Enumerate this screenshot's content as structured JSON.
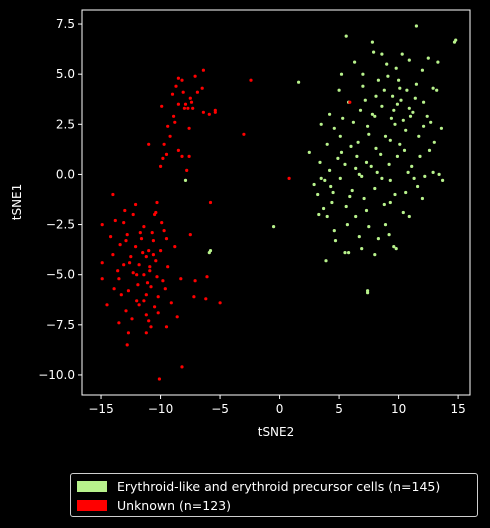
{
  "chart_data": {
    "type": "scatter",
    "xlabel": "tSNE2",
    "ylabel": "tSNE1",
    "xlim": [
      -16.6,
      16.0
    ],
    "ylim": [
      -11.0,
      8.2
    ],
    "xticks": [
      -15,
      -10,
      -5,
      0,
      5,
      10,
      15
    ],
    "yticks": [
      -10.0,
      -7.5,
      -5.0,
      -2.5,
      0.0,
      2.5,
      5.0,
      7.5
    ],
    "xtick_labels": [
      "−15",
      "−10",
      "−5",
      "0",
      "5",
      "10",
      "15"
    ],
    "ytick_labels": [
      "−10.0",
      "−7.5",
      "−5.0",
      "−2.5",
      "0.0",
      "2.5",
      "5.0",
      "7.5"
    ],
    "grid": false,
    "background": "#000000",
    "legend_position": "below",
    "series": [
      {
        "name": "Erythroid-like and erythroid precursor cells (n=145)",
        "color": "#b8f28c",
        "points": [
          [
            5.6,
            6.9
          ],
          [
            7.8,
            6.6
          ],
          [
            8.6,
            6.0
          ],
          [
            11.5,
            7.4
          ],
          [
            14.8,
            6.7
          ],
          [
            14.7,
            6.6
          ],
          [
            1.6,
            4.6
          ],
          [
            5.2,
            5.0
          ],
          [
            7.0,
            5.0
          ],
          [
            9.0,
            5.5
          ],
          [
            9.8,
            5.3
          ],
          [
            12.5,
            5.8
          ],
          [
            13.3,
            5.6
          ],
          [
            8.3,
            4.7
          ],
          [
            10.0,
            4.7
          ],
          [
            11.5,
            4.5
          ],
          [
            12.9,
            4.3
          ],
          [
            13.2,
            4.2
          ],
          [
            8.8,
            4.2
          ],
          [
            10.7,
            4.2
          ],
          [
            9.5,
            3.9
          ],
          [
            10.2,
            3.7
          ],
          [
            11.4,
            3.8
          ],
          [
            12.1,
            3.6
          ],
          [
            7.2,
            3.7
          ],
          [
            8.6,
            3.4
          ],
          [
            9.6,
            3.2
          ],
          [
            10.9,
            3.3
          ],
          [
            6.8,
            3.2
          ],
          [
            8.0,
            2.9
          ],
          [
            11.0,
            2.9
          ],
          [
            12.4,
            2.9
          ],
          [
            3.5,
            2.5
          ],
          [
            4.6,
            2.3
          ],
          [
            6.2,
            2.6
          ],
          [
            7.4,
            2.4
          ],
          [
            9.7,
            2.5
          ],
          [
            10.6,
            2.2
          ],
          [
            12.1,
            2.4
          ],
          [
            5.1,
            1.9
          ],
          [
            7.5,
            2.0
          ],
          [
            8.9,
            1.9
          ],
          [
            9.3,
            1.7
          ],
          [
            10.1,
            1.5
          ],
          [
            13.0,
            1.6
          ],
          [
            4.0,
            1.5
          ],
          [
            6.0,
            1.4
          ],
          [
            8.1,
            1.3
          ],
          [
            10.5,
            1.2
          ],
          [
            2.5,
            1.1
          ],
          [
            5.2,
            1.1
          ],
          [
            6.5,
            0.9
          ],
          [
            8.5,
            1.0
          ],
          [
            9.9,
            0.9
          ],
          [
            11.8,
            0.9
          ],
          [
            3.4,
            0.6
          ],
          [
            5.5,
            0.5
          ],
          [
            7.3,
            0.6
          ],
          [
            9.2,
            0.5
          ],
          [
            11.1,
            0.4
          ],
          [
            4.2,
            0.2
          ],
          [
            6.4,
            0.3
          ],
          [
            8.2,
            0.1
          ],
          [
            12.9,
            0.1
          ],
          [
            13.4,
            0.0
          ],
          [
            3.5,
            -0.2
          ],
          [
            5.1,
            -0.2
          ],
          [
            6.9,
            -0.1
          ],
          [
            9.3,
            -0.3
          ],
          [
            11.3,
            -0.2
          ],
          [
            13.7,
            -0.3
          ],
          [
            4.3,
            -0.6
          ],
          [
            6.1,
            -0.8
          ],
          [
            8.0,
            -0.7
          ],
          [
            10.6,
            -0.9
          ],
          [
            3.2,
            -1.0
          ],
          [
            5.9,
            -1.1
          ],
          [
            7.1,
            -1.2
          ],
          [
            9.3,
            -1.4
          ],
          [
            12.0,
            -1.2
          ],
          [
            4.4,
            -1.4
          ],
          [
            8.8,
            -1.5
          ],
          [
            5.6,
            -1.6
          ],
          [
            3.3,
            -2.0
          ],
          [
            4.0,
            -2.1
          ],
          [
            6.4,
            -2.1
          ],
          [
            8.9,
            -2.5
          ],
          [
            10.9,
            -2.1
          ],
          [
            -0.5,
            -2.6
          ],
          [
            4.6,
            -2.8
          ],
          [
            5.7,
            -2.5
          ],
          [
            7.5,
            -2.6
          ],
          [
            9.2,
            -3.0
          ],
          [
            4.7,
            -3.3
          ],
          [
            6.7,
            -3.1
          ],
          [
            8.3,
            -3.2
          ],
          [
            9.6,
            -3.6
          ],
          [
            9.8,
            -3.7
          ],
          [
            5.5,
            -3.9
          ],
          [
            5.8,
            -3.9
          ],
          [
            3.9,
            -4.3
          ],
          [
            7.4,
            -5.8
          ],
          [
            7.4,
            -5.9
          ],
          [
            -5.8,
            -3.8
          ],
          [
            -5.9,
            -3.9
          ],
          [
            -7.9,
            -0.3
          ],
          [
            5.0,
            4.2
          ],
          [
            6.3,
            5.6
          ],
          [
            7.9,
            6.1
          ],
          [
            10.3,
            6.0
          ],
          [
            12.0,
            5.2
          ],
          [
            10.9,
            5.7
          ],
          [
            9.1,
            4.9
          ],
          [
            8.1,
            3.9
          ],
          [
            7.8,
            3.0
          ],
          [
            9.4,
            2.8
          ],
          [
            10.4,
            2.7
          ],
          [
            11.7,
            1.9
          ],
          [
            12.6,
            1.2
          ],
          [
            10.8,
            0.1
          ],
          [
            8.6,
            -0.2
          ],
          [
            7.7,
            0.4
          ],
          [
            6.6,
            1.6
          ],
          [
            5.3,
            2.8
          ],
          [
            4.2,
            3.0
          ],
          [
            4.9,
            0.8
          ],
          [
            3.8,
            -0.3
          ],
          [
            2.9,
            -0.5
          ],
          [
            9.7,
            -1.0
          ],
          [
            11.6,
            -0.6
          ],
          [
            7.3,
            -1.8
          ],
          [
            6.9,
            -3.7
          ],
          [
            8.0,
            -4.0
          ],
          [
            9.9,
            3.5
          ],
          [
            11.2,
            3.1
          ],
          [
            12.7,
            2.6
          ],
          [
            13.6,
            2.3
          ],
          [
            7.0,
            4.4
          ],
          [
            10.1,
            4.3
          ],
          [
            6.7,
            0.0
          ],
          [
            4.5,
            -0.9
          ],
          [
            3.7,
            -1.7
          ],
          [
            10.4,
            -1.9
          ],
          [
            12.2,
            -0.1
          ],
          [
            5.8,
            3.6
          ]
        ]
      },
      {
        "name": "Unknown (n=123)",
        "color": "#ff0000",
        "points": [
          [
            -6.4,
            5.2
          ],
          [
            -8.5,
            4.8
          ],
          [
            -8.2,
            4.7
          ],
          [
            -7.1,
            4.9
          ],
          [
            -2.4,
            4.7
          ],
          [
            -6.5,
            4.3
          ],
          [
            -8.1,
            4.1
          ],
          [
            -9.0,
            4.0
          ],
          [
            -7.5,
            3.8
          ],
          [
            -7.4,
            3.6
          ],
          [
            -8.5,
            3.5
          ],
          [
            -9.9,
            3.4
          ],
          [
            -8.0,
            3.3
          ],
          [
            -7.3,
            3.3
          ],
          [
            -7.7,
            3.3
          ],
          [
            -5.9,
            3.0
          ],
          [
            -5.4,
            3.1
          ],
          [
            -8.9,
            2.9
          ],
          [
            -6.4,
            3.1
          ],
          [
            -9.4,
            2.4
          ],
          [
            -7.6,
            2.3
          ],
          [
            -3.0,
            2.0
          ],
          [
            -11.0,
            1.5
          ],
          [
            -9.7,
            1.5
          ],
          [
            -8.5,
            1.2
          ],
          [
            -9.5,
            1.0
          ],
          [
            -8.2,
            0.9
          ],
          [
            -7.6,
            0.9
          ],
          [
            -9.8,
            0.8
          ],
          [
            -10.0,
            0.4
          ],
          [
            -5.4,
            3.2
          ],
          [
            0.8,
            -0.2
          ],
          [
            -14.0,
            -1.0
          ],
          [
            -12.3,
            -2.0
          ],
          [
            -13.8,
            -2.3
          ],
          [
            -11.4,
            -2.6
          ],
          [
            -13.1,
            -2.4
          ],
          [
            -10.5,
            -2.0
          ],
          [
            -14.9,
            -2.5
          ],
          [
            -9.7,
            -2.8
          ],
          [
            -12.8,
            -3.0
          ],
          [
            -11.6,
            -3.2
          ],
          [
            -10.6,
            -3.3
          ],
          [
            -13.4,
            -3.5
          ],
          [
            -12.1,
            -3.6
          ],
          [
            -11.0,
            -3.8
          ],
          [
            -10.0,
            -3.8
          ],
          [
            -14.0,
            -4.0
          ],
          [
            -12.5,
            -4.1
          ],
          [
            -11.2,
            -4.1
          ],
          [
            -10.4,
            -4.3
          ],
          [
            -14.9,
            -4.4
          ],
          [
            -13.1,
            -4.5
          ],
          [
            -11.8,
            -4.5
          ],
          [
            -10.9,
            -4.6
          ],
          [
            -9.4,
            -4.6
          ],
          [
            -12.3,
            -4.9
          ],
          [
            -11.4,
            -5.0
          ],
          [
            -10.3,
            -5.1
          ],
          [
            -13.5,
            -5.2
          ],
          [
            -14.9,
            -5.2
          ],
          [
            -11.9,
            -5.5
          ],
          [
            -10.8,
            -5.6
          ],
          [
            -9.6,
            -5.7
          ],
          [
            -12.7,
            -5.8
          ],
          [
            -13.9,
            -5.7
          ],
          [
            -11.2,
            -6.0
          ],
          [
            -10.2,
            -6.1
          ],
          [
            -7.2,
            -6.1
          ],
          [
            -12.0,
            -6.3
          ],
          [
            -14.5,
            -6.5
          ],
          [
            -11.8,
            -6.5
          ],
          [
            -10.5,
            -6.6
          ],
          [
            -9.1,
            -6.4
          ],
          [
            -12.9,
            -6.8
          ],
          [
            -11.2,
            -7.0
          ],
          [
            -13.5,
            -7.4
          ],
          [
            -10.8,
            -7.6
          ],
          [
            -9.5,
            -7.6
          ],
          [
            -12.7,
            -7.9
          ],
          [
            -11.2,
            -7.9
          ],
          [
            -8.6,
            -7.1
          ],
          [
            -6.1,
            -5.1
          ],
          [
            -5.0,
            -6.4
          ],
          [
            -6.2,
            -6.2
          ],
          [
            -7.1,
            -5.3
          ],
          [
            -10.1,
            -10.2
          ],
          [
            -8.2,
            -9.6
          ],
          [
            -12.8,
            -8.5
          ],
          [
            -5.8,
            -1.4
          ],
          [
            -10.9,
            -4.8
          ],
          [
            -11.5,
            -3.9
          ],
          [
            -12.6,
            -4.4
          ],
          [
            -13.3,
            -6.0
          ],
          [
            -9.8,
            -5.3
          ],
          [
            -11.1,
            -5.4
          ],
          [
            -10.6,
            -4.0
          ],
          [
            -11.7,
            -2.9
          ],
          [
            -12.9,
            -3.3
          ],
          [
            -10.2,
            -6.9
          ],
          [
            -8.8,
            -3.6
          ],
          [
            -12.4,
            -7.2
          ],
          [
            -14.2,
            -3.1
          ],
          [
            -9.9,
            -2.4
          ],
          [
            -11.0,
            -7.3
          ],
          [
            -13.6,
            -4.8
          ],
          [
            -7.5,
            -3.0
          ],
          [
            -10.3,
            -1.4
          ],
          [
            -12.1,
            -1.5
          ],
          [
            -9.2,
            1.9
          ],
          [
            -8.8,
            2.6
          ],
          [
            -7.9,
            3.5
          ],
          [
            -8.7,
            4.4
          ],
          [
            -6.9,
            4.1
          ],
          [
            -8.3,
            -5.2
          ],
          [
            -11.4,
            -6.3
          ],
          [
            -13.0,
            -1.8
          ],
          [
            -9.5,
            -3.2
          ],
          [
            -12.0,
            -5.0
          ],
          [
            -10.7,
            -2.9
          ],
          [
            5.9,
            3.6
          ],
          [
            -7.8,
            0.2
          ],
          [
            -10.4,
            -1.9
          ]
        ]
      }
    ]
  }
}
